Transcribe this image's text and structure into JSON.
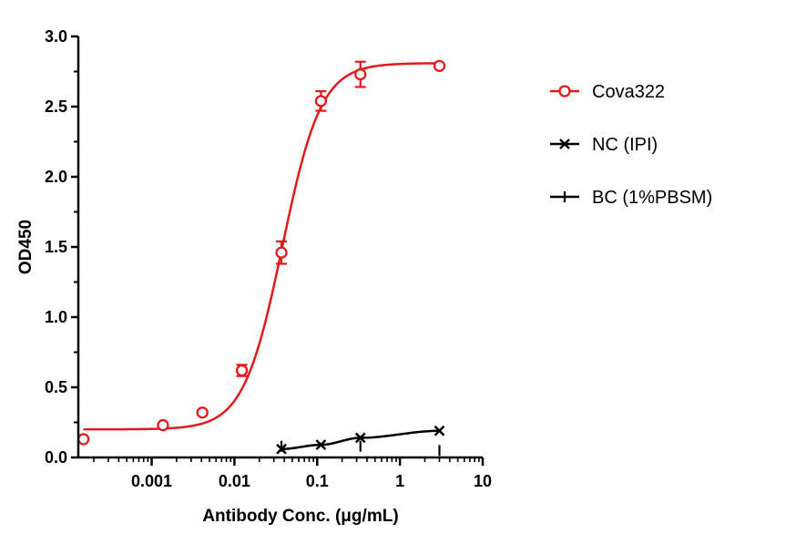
{
  "chart_data": {
    "type": "scatter",
    "xlabel": "Antibody Conc. (μg/mL)",
    "ylabel": "OD450",
    "x_scale": "log",
    "xlim": [
      0.00013,
      10
    ],
    "ylim": [
      0,
      3.0
    ],
    "x_ticks": [
      {
        "value": 0.001,
        "label": "0.001"
      },
      {
        "value": 0.01,
        "label": "0.01"
      },
      {
        "value": 0.1,
        "label": "0.1"
      },
      {
        "value": 1,
        "label": "1"
      },
      {
        "value": 10,
        "label": "10"
      }
    ],
    "y_ticks": [
      {
        "value": 0,
        "label": "0.0"
      },
      {
        "value": 0.5,
        "label": "0.5"
      },
      {
        "value": 1.0,
        "label": "1.0"
      },
      {
        "value": 1.5,
        "label": "1.5"
      },
      {
        "value": 2.0,
        "label": "2.0"
      },
      {
        "value": 2.5,
        "label": "2.5"
      },
      {
        "value": 3.0,
        "label": "3.0"
      }
    ],
    "grid": false,
    "legend_position": "right",
    "series": [
      {
        "name": "Cova322",
        "color": "#e31a1c",
        "marker": "open-circle",
        "points": [
          {
            "x": 0.00015,
            "y": 0.13,
            "err": 0
          },
          {
            "x": 0.00137,
            "y": 0.23,
            "err": 0
          },
          {
            "x": 0.0041,
            "y": 0.32,
            "err": 0
          },
          {
            "x": 0.0123,
            "y": 0.62,
            "err": 0.04
          },
          {
            "x": 0.037,
            "y": 1.46,
            "err": 0.08
          },
          {
            "x": 0.111,
            "y": 2.54,
            "err": 0.07
          },
          {
            "x": 0.333,
            "y": 2.73,
            "err": 0.09
          },
          {
            "x": 3.0,
            "y": 2.79,
            "err": 0
          }
        ],
        "curve": {
          "bottom": 0.2,
          "top": 2.81,
          "ec50": 0.038,
          "hill": 1.85
        }
      },
      {
        "name": "NC (IPI)",
        "color": "#000000",
        "marker": "cross-x",
        "points": [
          {
            "x": 0.037,
            "y": 0.06
          },
          {
            "x": 0.111,
            "y": 0.09
          },
          {
            "x": 0.333,
            "y": 0.14
          },
          {
            "x": 3.0,
            "y": 0.19
          }
        ]
      },
      {
        "name": "BC (1%PBSM)",
        "color": "#000000",
        "marker": "vertical-bar",
        "points": [
          {
            "x": 0.037,
            "y": 0.08
          },
          {
            "x": 0.333,
            "y": 0.08
          },
          {
            "x": 3.0,
            "y": 0.05
          }
        ]
      }
    ]
  }
}
